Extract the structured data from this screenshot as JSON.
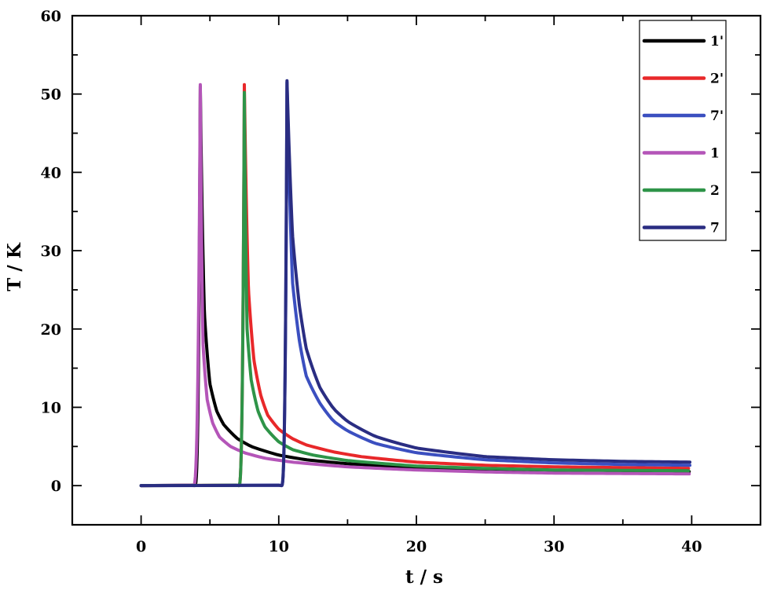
{
  "chart_data": {
    "type": "line",
    "title": "",
    "xlabel": "t / s",
    "ylabel": "T / K",
    "xlim": [
      -5,
      45
    ],
    "ylim": [
      -5,
      60
    ],
    "xticks": [
      0,
      10,
      20,
      30,
      40
    ],
    "yticks": [
      0,
      10,
      20,
      30,
      40,
      50,
      60
    ],
    "grid": false,
    "legend_position": "top-right",
    "series": [
      {
        "name": "1'",
        "color": "#000000",
        "onset": 3.9,
        "peak_t": 4.3,
        "peak": 51.0,
        "tail_end": 1.8,
        "x": [
          0,
          3.9,
          4.3,
          4.6,
          5.0,
          5.5,
          6.0,
          7.0,
          8.0,
          10.0,
          12.0,
          15.0,
          20.0,
          25.0,
          30.0,
          35.0,
          40.0
        ],
        "y": [
          0,
          0.3,
          51.0,
          22.0,
          13.0,
          9.5,
          7.8,
          6.0,
          5.0,
          3.9,
          3.3,
          2.8,
          2.3,
          2.1,
          1.9,
          1.85,
          1.8
        ]
      },
      {
        "name": "2'",
        "color": "#e8282a",
        "onset": 7.1,
        "peak_t": 7.5,
        "peak": 51.2,
        "tail_end": 2.2,
        "x": [
          0,
          7.1,
          7.5,
          7.8,
          8.2,
          8.7,
          9.2,
          10.0,
          11.0,
          12.0,
          14.0,
          16.0,
          20.0,
          25.0,
          30.0,
          35.0,
          40.0
        ],
        "y": [
          0,
          0.3,
          51.2,
          25.0,
          16.0,
          11.5,
          9.0,
          7.2,
          6.0,
          5.2,
          4.3,
          3.7,
          3.0,
          2.6,
          2.4,
          2.3,
          2.2
        ]
      },
      {
        "name": "7'",
        "color": "#3b4fc0",
        "onset": 10.2,
        "peak_t": 10.6,
        "peak": 51.5,
        "tail_end": 2.6,
        "x": [
          0,
          10.2,
          10.6,
          11.0,
          11.5,
          12.0,
          13.0,
          14.0,
          15.0,
          17.0,
          20.0,
          25.0,
          30.0,
          35.0,
          40.0
        ],
        "y": [
          0,
          0.3,
          51.5,
          26.0,
          18.5,
          14.0,
          10.5,
          8.2,
          7.0,
          5.4,
          4.2,
          3.3,
          2.9,
          2.7,
          2.6
        ]
      },
      {
        "name": "1",
        "color": "#b455b8",
        "onset": 3.8,
        "peak_t": 4.3,
        "peak": 51.2,
        "tail_end": 1.5,
        "x": [
          0,
          3.8,
          4.3,
          4.5,
          4.8,
          5.2,
          5.7,
          6.5,
          7.5,
          9.0,
          11.0,
          15.0,
          20.0,
          25.0,
          30.0,
          35.0,
          40.0
        ],
        "y": [
          0,
          0.3,
          51.2,
          18.0,
          11.0,
          8.0,
          6.2,
          5.0,
          4.2,
          3.5,
          3.0,
          2.4,
          2.0,
          1.75,
          1.6,
          1.55,
          1.5
        ]
      },
      {
        "name": "2",
        "color": "#2e9448",
        "onset": 7.1,
        "peak_t": 7.5,
        "peak": 50.2,
        "tail_end": 1.9,
        "x": [
          0,
          7.1,
          7.5,
          7.7,
          8.0,
          8.5,
          9.0,
          10.0,
          11.0,
          12.5,
          15.0,
          20.0,
          25.0,
          30.0,
          35.0,
          40.0
        ],
        "y": [
          0,
          0.3,
          50.2,
          20.0,
          13.5,
          9.5,
          7.5,
          5.6,
          4.6,
          3.9,
          3.2,
          2.5,
          2.2,
          2.0,
          1.95,
          1.9
        ]
      },
      {
        "name": "7",
        "color": "#2a2d82",
        "onset": 10.2,
        "peak_t": 10.6,
        "peak": 51.7,
        "tail_end": 3.0,
        "x": [
          0,
          10.2,
          10.6,
          11.0,
          11.5,
          12.0,
          13.0,
          14.0,
          15.0,
          17.0,
          20.0,
          25.0,
          30.0,
          35.0,
          40.0
        ],
        "y": [
          0,
          0.3,
          51.7,
          32.0,
          23.0,
          17.5,
          12.5,
          9.8,
          8.2,
          6.3,
          4.8,
          3.7,
          3.3,
          3.1,
          3.0
        ]
      }
    ]
  }
}
